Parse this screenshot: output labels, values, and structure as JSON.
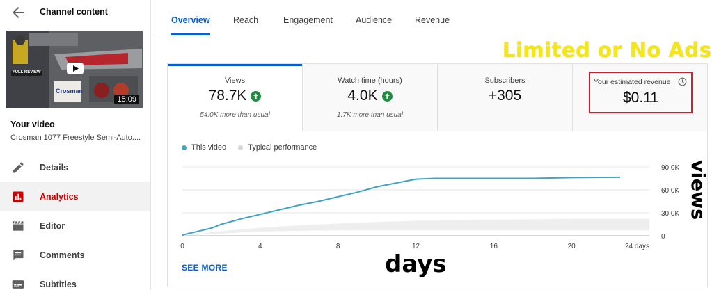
{
  "sidebar": {
    "title": "Channel content",
    "thumbnail": {
      "duration": "15:09",
      "caption_brand": "Crosman",
      "caption_review": "FULL REVIEW"
    },
    "your_video_label": "Your video",
    "video_title": "Crosman 1077 Freestyle Semi-Auto....",
    "nav": [
      {
        "label": "Details",
        "icon": "pencil-icon"
      },
      {
        "label": "Analytics",
        "icon": "analytics-icon",
        "active": true
      },
      {
        "label": "Editor",
        "icon": "editor-clapper-icon"
      },
      {
        "label": "Comments",
        "icon": "comments-icon"
      },
      {
        "label": "Subtitles",
        "icon": "subtitles-icon"
      }
    ]
  },
  "tabs": [
    {
      "label": "Overview",
      "active": true
    },
    {
      "label": "Reach"
    },
    {
      "label": "Engagement"
    },
    {
      "label": "Audience"
    },
    {
      "label": "Revenue"
    }
  ],
  "overlay": {
    "ads_text": "Limited or No Ads",
    "views_text": "views",
    "days_text": "days"
  },
  "metrics": [
    {
      "label": "Views",
      "value": "78.7K",
      "trend": "up",
      "sub": "54.0K more than usual"
    },
    {
      "label": "Watch time (hours)",
      "value": "4.0K",
      "trend": "up",
      "sub": "1.7K more than usual"
    },
    {
      "label": "Subscribers",
      "value": "+305"
    },
    {
      "label": "Your estimated revenue",
      "value": "$0.11"
    }
  ],
  "legend": {
    "this_video": "This video",
    "typical": "Typical performance"
  },
  "see_more": "SEE MORE",
  "colors": {
    "accent": "#065fd4",
    "series": "#41a3c3",
    "typical_band": "#eeeeee",
    "highlight_box": "#cf1f2e",
    "active_nav": "#cc0000",
    "ads_text": "#f5e61a"
  },
  "chart_data": {
    "type": "line",
    "x_ticks": [
      0,
      4,
      8,
      12,
      16,
      20
    ],
    "x_tick_labels": [
      "0",
      "4",
      "8",
      "12",
      "16",
      "20"
    ],
    "x_end_label": "24 days",
    "y_ticks": [
      0,
      30000,
      60000,
      90000
    ],
    "y_tick_labels": [
      "0",
      "30.0K",
      "60.0K",
      "90.0K"
    ],
    "xlim": [
      0,
      24
    ],
    "ylim": [
      0,
      90000
    ],
    "series": [
      {
        "name": "This video",
        "x": [
          0,
          0.5,
          1,
          1.5,
          2,
          3,
          4,
          5,
          6,
          7,
          8,
          9,
          10,
          11,
          12,
          13,
          14,
          16,
          18,
          20,
          22.5
        ],
        "y": [
          1000,
          4000,
          7000,
          10000,
          15000,
          22000,
          28000,
          34000,
          40000,
          45000,
          51000,
          57000,
          64000,
          69000,
          74000,
          75000,
          75000,
          75000,
          75000,
          76000,
          76500
        ]
      }
    ],
    "typical_band": {
      "x": [
        0,
        2,
        4,
        6,
        8,
        10,
        12,
        14,
        16,
        18,
        20,
        22,
        24
      ],
      "low": [
        0,
        3000,
        5500,
        6500,
        7000,
        7000,
        7000,
        7000,
        7000,
        7000,
        7000,
        7000,
        7000
      ],
      "high": [
        0,
        6000,
        10500,
        13500,
        16000,
        18000,
        19500,
        20500,
        21000,
        21500,
        22000,
        22000,
        22000
      ]
    }
  }
}
